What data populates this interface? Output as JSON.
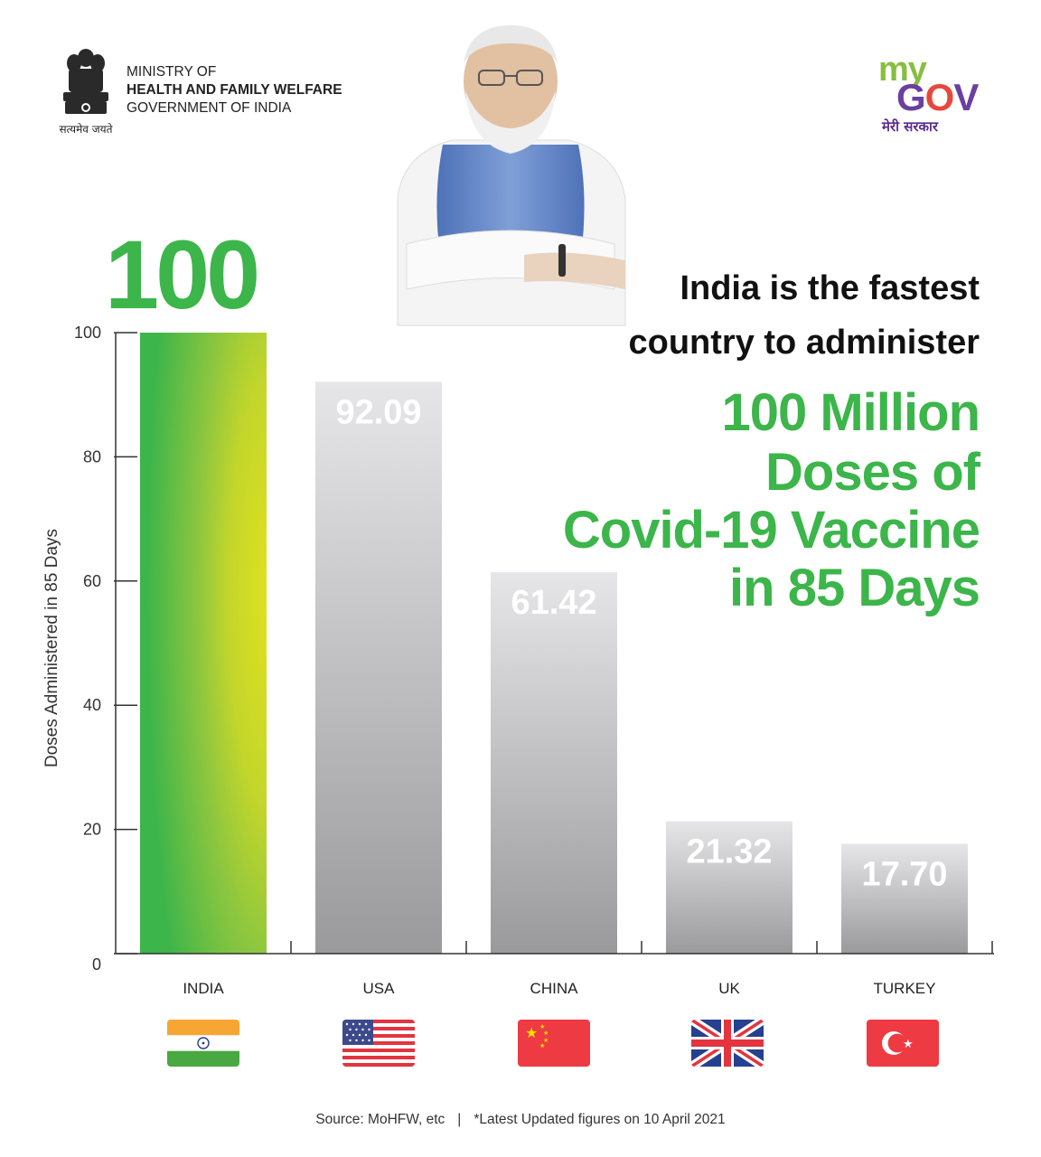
{
  "header": {
    "emblem_motto": "सत्यमेव जयते",
    "ministry_line1": "MINISTRY OF",
    "ministry_line2": "HEALTH AND FAMILY WELFARE",
    "ministry_line3": "GOVERNMENT OF INDIA",
    "mygov_my": "my",
    "mygov_gov_g": "G",
    "mygov_gov_o": "O",
    "mygov_gov_v": "V",
    "mygov_tagline": "मेरी सरकार"
  },
  "headline": {
    "big_number": "100",
    "line1": "India is the fastest",
    "line2": "country to administer",
    "green1": "100 Million",
    "green2": "Doses of",
    "green3": "Covid-19 Vaccine",
    "green4": "in 85 Days"
  },
  "footer": {
    "source": "Source: MoHFW, etc",
    "separator": "|",
    "note": "*Latest Updated figures on 10 April 2021"
  },
  "colors": {
    "green": "#3cb54a",
    "yellow_green": "#d4e021",
    "bar_grey_light": "#e6e6e8",
    "bar_grey_dark": "#9a9a9c"
  },
  "chart_data": {
    "type": "bar",
    "categories": [
      "INDIA",
      "USA",
      "CHINA",
      "UK",
      "TURKEY"
    ],
    "values": [
      100,
      92.09,
      61.42,
      21.32,
      17.7
    ],
    "value_labels": [
      "",
      "92.09",
      "61.42",
      "21.32",
      "17.70"
    ],
    "ylabel": "Doses Administered in 85 Days",
    "ylim": [
      0,
      100
    ],
    "yticks": [
      "0",
      "20",
      "40",
      "60",
      "80",
      "100"
    ],
    "flags": [
      "india-flag-icon",
      "usa-flag-icon",
      "china-flag-icon",
      "uk-flag-icon",
      "turkey-flag-icon"
    ]
  }
}
